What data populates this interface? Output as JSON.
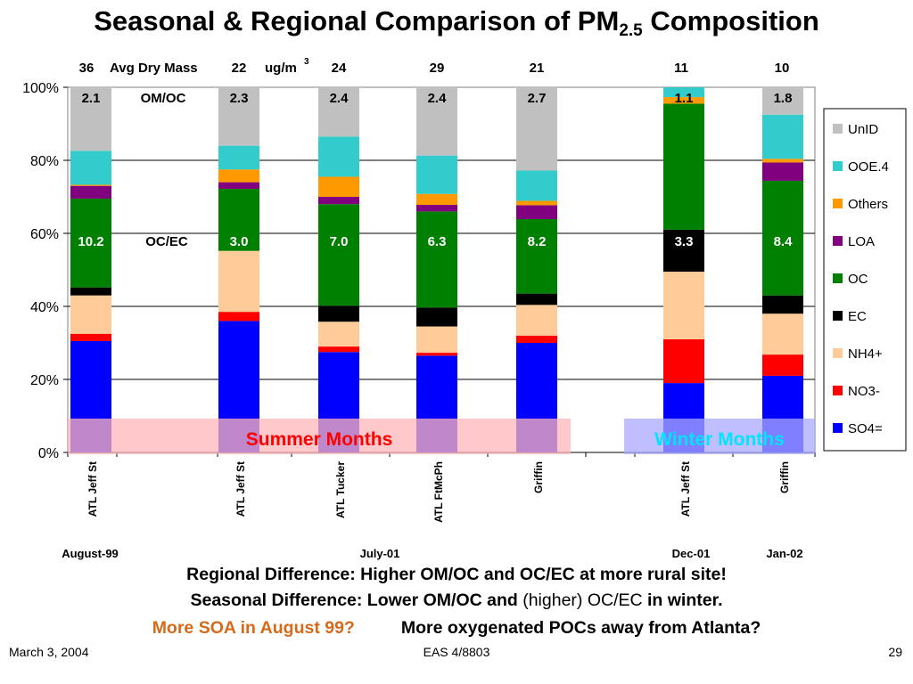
{
  "slide": {
    "title_main": "Seasonal & Regional Comparison of PM",
    "title_sub": "2.5",
    "title_end": " Composition",
    "line1": "Regional Difference: Higher OM/OC and OC/EC at more rural site!",
    "line2a": "Seasonal Difference: Lower OM/OC and ",
    "line2b": "(higher) OC/EC",
    "line2c": " in winter.",
    "line3a": "More SOA in August 99?",
    "line3b": "More oxygenated POCs away from Atlanta?",
    "footer_date": "March 3, 2004",
    "footer_course": "EAS 4/8803",
    "footer_page": "29"
  },
  "chart_data": {
    "type": "bar",
    "stacked": true,
    "ylim": [
      0,
      100
    ],
    "yticks": [
      "0%",
      "20%",
      "40%",
      "60%",
      "80%",
      "100%"
    ],
    "grid": true,
    "legend_position": "right",
    "categories": [
      "ATL Jeff St",
      "ATL Jeff St",
      "ATL Tucker",
      "ATL FtMcPh",
      "Griffin",
      "ATL Jeff St",
      "Griffin"
    ],
    "period_labels": [
      "August-99",
      "July-01",
      "Dec-01",
      "Jan-02"
    ],
    "header_labels": {
      "avg_dry_mass": "Avg Dry Mass",
      "units": "ug/m",
      "units_sup": "3",
      "omoc": "OM/OC",
      "ocec": "OC/EC"
    },
    "avg_dry_mass": [
      "36",
      "22",
      "24",
      "29",
      "21",
      "11",
      "10"
    ],
    "om_oc": [
      "2.1",
      "2.3",
      "2.4",
      "2.4",
      "2.7",
      "1.1",
      "1.8"
    ],
    "oc_ec": [
      "10.2",
      "3.0",
      "7.0",
      "6.3",
      "8.2",
      "3.3",
      "8.4"
    ],
    "series": [
      {
        "name": "SO4=",
        "color": "#0000FF",
        "values": [
          30.5,
          36.0,
          27.5,
          26.5,
          30.0,
          19.0,
          21.0
        ]
      },
      {
        "name": "NO3-",
        "color": "#FF0000",
        "values": [
          2.0,
          2.5,
          1.5,
          0.8,
          2.0,
          12.0,
          5.8
        ]
      },
      {
        "name": "NH4+",
        "color": "#FFCC99",
        "values": [
          10.5,
          16.7,
          6.8,
          7.2,
          8.4,
          18.5,
          11.2
        ]
      },
      {
        "name": "EC",
        "color": "#000000",
        "values": [
          2.2,
          0.0,
          4.4,
          5.2,
          3.1,
          11.5,
          5.0
        ]
      },
      {
        "name": "OC",
        "color": "#008000",
        "values": [
          24.3,
          17.0,
          27.8,
          26.3,
          20.4,
          34.5,
          31.4
        ]
      },
      {
        "name": "LOA",
        "color": "#800080",
        "values": [
          3.5,
          1.8,
          2.0,
          1.8,
          3.8,
          0.0,
          5.0
        ]
      },
      {
        "name": "Others",
        "color": "#FF9900",
        "values": [
          0.3,
          3.5,
          5.5,
          3.0,
          1.2,
          1.8,
          1.0
        ]
      },
      {
        "name": "OOE.4",
        "color": "#33CCCC",
        "values": [
          9.3,
          6.5,
          11.0,
          10.5,
          8.3,
          2.7,
          12.1
        ]
      },
      {
        "name": "UnID",
        "color": "#C0C0C0",
        "values": [
          17.4,
          16.0,
          13.5,
          18.7,
          22.8,
          0.0,
          7.5
        ]
      }
    ],
    "legend_order": [
      "UnID",
      "OOE.4",
      "Others",
      "LOA",
      "OC",
      "EC",
      "NH4+",
      "NO3-",
      "SO4="
    ],
    "annotations": {
      "summer": {
        "text": "Summer Months",
        "fill": "#FFB6B9",
        "text_color": "#FF0000"
      },
      "winter": {
        "text": "Winter Months",
        "fill": "#A9A9FF",
        "text_color": "#00E5FF"
      }
    }
  }
}
